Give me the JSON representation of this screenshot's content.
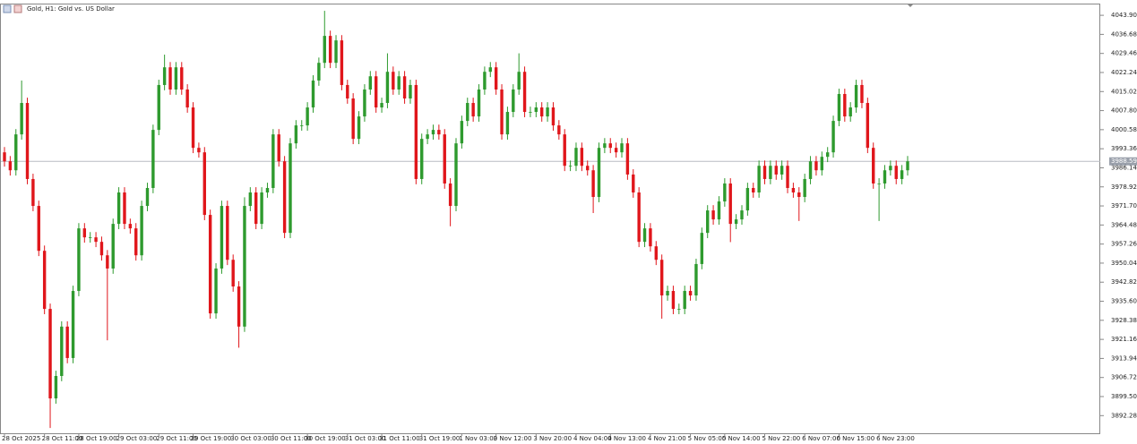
{
  "chart_data": {
    "type": "candlestick",
    "title": "Gold, H1:  Gold vs. US Dollar",
    "up_color": "#2e9a2e",
    "down_color": "#e0161b",
    "ylim": [
      3885.6,
      4048.0
    ],
    "yticks": [
      {
        "value": 4043.9,
        "label": "4043.90"
      },
      4036.68,
      4029.46,
      4022.24,
      4015.02,
      {
        "value": 4007.8,
        "label": "4007.80"
      },
      4000.58,
      3993.36,
      3986.14,
      3978.92,
      {
        "value": 3971.7,
        "label": "3971.70"
      },
      3964.48,
      3957.26,
      3950.04,
      3942.82,
      {
        "value": 3935.6,
        "label": "3935.60"
      },
      3928.38,
      3921.16,
      3913.94,
      3906.72,
      {
        "value": 3899.5,
        "label": "3899.50"
      },
      3892.28
    ],
    "last_price": 3988.59,
    "xticks": [
      {
        "value": 0,
        "label": "28 Oct 2025"
      },
      {
        "value": 7,
        "label": "28 Oct 11:00"
      },
      {
        "value": 13,
        "label": "28 Oct 19:00"
      },
      {
        "value": 20,
        "label": "29 Oct 03:00"
      },
      {
        "value": 27,
        "label": "29 Oct 11:00"
      },
      {
        "value": 33,
        "label": "29 Oct 19:00"
      },
      {
        "value": 40,
        "label": "30 Oct 03:00"
      },
      {
        "value": 47,
        "label": "30 Oct 11:00"
      },
      {
        "value": 53,
        "label": "30 Oct 19:00"
      },
      {
        "value": 60,
        "label": "31 Oct 03:00"
      },
      {
        "value": 66,
        "label": "31 Oct 11:00"
      },
      {
        "value": 73,
        "label": "31 Oct 19:00"
      },
      {
        "value": 80,
        "label": "1 Nov 03:00"
      },
      {
        "value": 86,
        "label": "3 Nov 12:00"
      },
      {
        "value": 93,
        "label": "3 Nov 20:00"
      },
      {
        "value": 100,
        "label": "4 Nov 04:00"
      },
      {
        "value": 106,
        "label": "4 Nov 13:00"
      },
      {
        "value": 113,
        "label": "4 Nov 21:00"
      },
      {
        "value": 120,
        "label": "5 Nov 05:00"
      },
      {
        "value": 126,
        "label": "5 Nov 14:00"
      },
      {
        "value": 133,
        "label": "5 Nov 22:00"
      },
      {
        "value": 140,
        "label": "6 Nov 07:00"
      },
      {
        "value": 146,
        "label": "6 Nov 15:00"
      },
      {
        "value": 153,
        "label": "6 Nov 23:00"
      }
    ],
    "candles": [
      [
        3992.0,
        3994.0,
        3986.6,
        3988.6
      ],
      [
        3988.6,
        3990.6,
        3983.2,
        3985.2
      ],
      [
        3985.2,
        4000.8,
        3983.2,
        3998.8
      ],
      [
        3998.8,
        4019.2,
        3996.8,
        4010.7
      ],
      [
        4010.7,
        4012.7,
        3979.9,
        3981.9
      ],
      [
        3981.9,
        3983.9,
        3969.7,
        3971.7
      ],
      [
        3971.7,
        3973.7,
        3952.7,
        3954.7
      ],
      [
        3954.7,
        3956.7,
        3930.7,
        3932.7
      ],
      [
        3932.7,
        3934.7,
        3887.6,
        3898.8
      ],
      [
        3898.8,
        3909.3,
        3896.8,
        3907.3
      ],
      [
        3907.3,
        3928.0,
        3905.3,
        3926.0
      ],
      [
        3926.0,
        3928.0,
        3912.1,
        3914.1
      ],
      [
        3914.1,
        3941.5,
        3912.1,
        3939.5
      ],
      [
        3939.5,
        3965.2,
        3937.5,
        3963.2
      ],
      [
        3963.2,
        3965.2,
        3957.8,
        3959.8
      ],
      [
        3959.8,
        3961.8,
        3957.8,
        3959.8
      ],
      [
        3959.8,
        3961.8,
        3956.1,
        3958.1
      ],
      [
        3958.1,
        3960.1,
        3951.0,
        3953.0
      ],
      [
        3953.0,
        3955.0,
        3920.8,
        3948.0
      ],
      [
        3948.0,
        3966.9,
        3946.0,
        3964.9
      ],
      [
        3964.9,
        3978.8,
        3962.9,
        3976.8
      ],
      [
        3976.8,
        3978.8,
        3962.9,
        3964.9
      ],
      [
        3964.9,
        3966.9,
        3961.2,
        3963.2
      ],
      [
        3963.2,
        3965.2,
        3951.0,
        3953.0
      ],
      [
        3953.0,
        3973.7,
        3951.0,
        3971.7
      ],
      [
        3971.7,
        3980.5,
        3969.7,
        3978.5
      ],
      [
        3978.5,
        4002.5,
        3976.5,
        4000.5
      ],
      [
        4000.5,
        4019.5,
        3998.5,
        4017.5
      ],
      [
        4017.5,
        4029.0,
        4015.5,
        4024.2
      ],
      [
        4024.2,
        4026.2,
        4013.8,
        4015.8
      ],
      [
        4015.8,
        4026.2,
        4013.8,
        4024.2
      ],
      [
        4024.2,
        4026.2,
        4013.8,
        4015.8
      ],
      [
        4015.8,
        4017.8,
        4007.0,
        4009.0
      ],
      [
        4009.0,
        4011.0,
        3991.7,
        3993.7
      ],
      [
        3993.7,
        3995.7,
        3990.0,
        3992.0
      ],
      [
        3992.0,
        3994.0,
        3966.3,
        3968.3
      ],
      [
        3968.3,
        3970.3,
        3929.0,
        3931.0
      ],
      [
        3931.0,
        3950.0,
        3929.0,
        3948.0
      ],
      [
        3948.0,
        3973.7,
        3946.0,
        3971.7
      ],
      [
        3971.7,
        3973.7,
        3949.3,
        3951.3
      ],
      [
        3951.3,
        3953.3,
        3939.2,
        3941.2
      ],
      [
        3941.2,
        3943.2,
        3918.0,
        3926.0
      ],
      [
        3926.0,
        3975.0,
        3924.0,
        3971.7
      ],
      [
        3971.7,
        3978.8,
        3969.7,
        3976.8
      ],
      [
        3976.8,
        3978.8,
        3962.9,
        3964.9
      ],
      [
        3964.9,
        3978.8,
        3962.9,
        3976.8
      ],
      [
        3976.8,
        3980.5,
        3974.8,
        3978.5
      ],
      [
        3978.5,
        4000.8,
        3976.5,
        3998.8
      ],
      [
        3998.8,
        4000.8,
        3986.6,
        3988.6
      ],
      [
        3988.6,
        3990.6,
        3959.5,
        3961.5
      ],
      [
        3961.5,
        3997.4,
        3959.5,
        3995.4
      ],
      [
        3995.4,
        4004.2,
        3993.4,
        4002.2
      ],
      [
        4002.2,
        4004.2,
        4000.2,
        4002.2
      ],
      [
        4002.2,
        4011.0,
        4000.2,
        4009.0
      ],
      [
        4009.0,
        4021.2,
        4007.0,
        4019.2
      ],
      [
        4019.2,
        4027.9,
        4017.2,
        4025.9
      ],
      [
        4025.9,
        4045.6,
        4023.9,
        4036.1
      ],
      [
        4036.1,
        4038.1,
        4023.9,
        4025.9
      ],
      [
        4025.9,
        4036.4,
        4023.9,
        4034.4
      ],
      [
        4034.4,
        4036.4,
        4015.5,
        4017.5
      ],
      [
        4017.5,
        4019.5,
        4010.4,
        4012.4
      ],
      [
        4012.4,
        4014.4,
        3995.1,
        3997.1
      ],
      [
        3997.1,
        4007.6,
        3995.1,
        4005.6
      ],
      [
        4005.6,
        4017.8,
        4003.6,
        4015.8
      ],
      [
        4015.8,
        4022.8,
        4013.8,
        4020.8
      ],
      [
        4020.8,
        4022.8,
        4007.0,
        4009.0
      ],
      [
        4009.0,
        4012.7,
        4007.0,
        4010.7
      ],
      [
        4010.7,
        4029.5,
        4008.7,
        4022.5
      ],
      [
        4022.5,
        4024.5,
        4013.8,
        4015.8
      ],
      [
        4015.8,
        4022.8,
        4013.8,
        4020.8
      ],
      [
        4020.8,
        4022.8,
        4010.4,
        4012.4
      ],
      [
        4012.4,
        4019.5,
        4010.4,
        4017.5
      ],
      [
        4017.5,
        4019.5,
        3979.9,
        3981.9
      ],
      [
        3981.9,
        3999.1,
        3979.9,
        3997.1
      ],
      [
        3997.1,
        4000.8,
        3995.1,
        3998.8
      ],
      [
        3998.8,
        4002.5,
        3996.8,
        4000.5
      ],
      [
        4000.5,
        4002.5,
        3996.8,
        3998.8
      ],
      [
        3998.8,
        4000.8,
        3978.2,
        3980.2
      ],
      [
        3980.2,
        3982.2,
        3964.0,
        3971.7
      ],
      [
        3971.7,
        3997.4,
        3969.7,
        3995.4
      ],
      [
        3995.4,
        4005.9,
        3993.4,
        4003.9
      ],
      [
        4003.9,
        4012.7,
        4001.9,
        4010.7
      ],
      [
        4010.7,
        4012.7,
        4003.6,
        4005.6
      ],
      [
        4005.6,
        4017.8,
        4003.6,
        4015.8
      ],
      [
        4015.8,
        4024.5,
        4013.8,
        4022.5
      ],
      [
        4022.5,
        4026.2,
        4020.5,
        4024.2
      ],
      [
        4024.2,
        4026.2,
        4013.8,
        4015.8
      ],
      [
        4015.8,
        4017.8,
        3996.8,
        3998.8
      ],
      [
        3998.8,
        4009.3,
        3996.8,
        4007.3
      ],
      [
        4007.3,
        4017.8,
        4005.3,
        4015.8
      ],
      [
        4015.8,
        4029.5,
        4013.8,
        4022.5
      ],
      [
        4022.5,
        4024.5,
        4005.3,
        4007.3
      ],
      [
        4007.3,
        4009.3,
        4005.3,
        4007.3
      ],
      [
        4007.3,
        4011.0,
        4005.3,
        4009.0
      ],
      [
        4009.0,
        4011.0,
        4003.6,
        4005.6
      ],
      [
        4005.6,
        4011.0,
        4003.6,
        4009.0
      ],
      [
        4009.0,
        4011.0,
        4000.2,
        4002.2
      ],
      [
        4002.2,
        4004.2,
        3996.8,
        3998.8
      ],
      [
        3998.8,
        4000.8,
        3984.9,
        3986.9
      ],
      [
        3986.9,
        3988.9,
        3984.9,
        3986.9
      ],
      [
        3986.9,
        3995.7,
        3984.9,
        3993.7
      ],
      [
        3993.7,
        3995.7,
        3984.9,
        3986.9
      ],
      [
        3986.9,
        3988.9,
        3983.2,
        3985.2
      ],
      [
        3985.2,
        3987.2,
        3969.0,
        3975.1
      ],
      [
        3975.1,
        3995.7,
        3973.1,
        3993.7
      ],
      [
        3993.7,
        3997.4,
        3991.7,
        3995.4
      ],
      [
        3995.4,
        3997.4,
        3991.7,
        3993.7
      ],
      [
        3993.7,
        3995.7,
        3990.0,
        3992.0
      ],
      [
        3992.0,
        3997.4,
        3990.0,
        3995.4
      ],
      [
        3995.4,
        3997.4,
        3981.6,
        3983.6
      ],
      [
        3983.6,
        3985.6,
        3974.8,
        3976.8
      ],
      [
        3976.8,
        3978.8,
        3956.1,
        3958.1
      ],
      [
        3958.1,
        3965.2,
        3956.1,
        3963.2
      ],
      [
        3963.2,
        3965.2,
        3954.4,
        3956.4
      ],
      [
        3956.4,
        3958.4,
        3949.3,
        3951.3
      ],
      [
        3951.3,
        3953.3,
        3929.0,
        3937.8
      ],
      [
        3937.8,
        3941.5,
        3935.8,
        3939.5
      ],
      [
        3939.5,
        3941.5,
        3930.7,
        3932.7
      ],
      [
        3932.7,
        3934.7,
        3930.7,
        3932.7
      ],
      [
        3932.7,
        3941.5,
        3930.7,
        3939.5
      ],
      [
        3939.5,
        3941.5,
        3935.8,
        3937.8
      ],
      [
        3937.8,
        3951.7,
        3935.8,
        3949.7
      ],
      [
        3949.7,
        3963.5,
        3947.7,
        3961.5
      ],
      [
        3961.5,
        3972.0,
        3959.5,
        3970.0
      ],
      [
        3970.0,
        3972.0,
        3964.6,
        3966.6
      ],
      [
        3966.6,
        3975.4,
        3964.6,
        3973.4
      ],
      [
        3973.4,
        3982.2,
        3971.4,
        3980.2
      ],
      [
        3980.2,
        3982.2,
        3958.0,
        3964.9
      ],
      [
        3964.9,
        3968.6,
        3962.9,
        3966.6
      ],
      [
        3966.6,
        3972.0,
        3964.6,
        3970.0
      ],
      [
        3970.0,
        3980.5,
        3968.0,
        3978.5
      ],
      [
        3978.5,
        3980.5,
        3974.8,
        3976.8
      ],
      [
        3976.8,
        3988.9,
        3974.8,
        3986.9
      ],
      [
        3986.9,
        3988.9,
        3979.9,
        3981.9
      ],
      [
        3981.9,
        3988.9,
        3979.9,
        3986.9
      ],
      [
        3986.9,
        3988.9,
        3981.6,
        3983.6
      ],
      [
        3983.6,
        3988.9,
        3981.6,
        3986.9
      ],
      [
        3986.9,
        3988.9,
        3976.5,
        3978.5
      ],
      [
        3978.5,
        3980.5,
        3974.8,
        3976.8
      ],
      [
        3976.8,
        3978.8,
        3966.0,
        3975.1
      ],
      [
        3975.1,
        3983.9,
        3973.1,
        3981.9
      ],
      [
        3981.9,
        3990.6,
        3979.9,
        3988.6
      ],
      [
        3988.6,
        3990.6,
        3983.2,
        3985.2
      ],
      [
        3985.2,
        3992.3,
        3983.2,
        3990.3
      ],
      [
        3990.3,
        3994.0,
        3988.3,
        3992.0
      ],
      [
        3992.0,
        4005.9,
        3990.0,
        4003.9
      ],
      [
        4003.9,
        4016.1,
        4001.9,
        4014.1
      ],
      [
        4014.1,
        4016.1,
        4003.6,
        4005.6
      ],
      [
        4005.6,
        4011.0,
        4003.6,
        4009.0
      ],
      [
        4009.0,
        4019.5,
        4007.0,
        4017.5
      ],
      [
        4017.5,
        4019.5,
        4008.7,
        4010.7
      ],
      [
        4010.7,
        4012.7,
        3991.7,
        3993.7
      ],
      [
        3993.7,
        3995.7,
        3978.2,
        3980.2
      ],
      [
        3980.2,
        3982.2,
        3966.0,
        3980.2
      ],
      [
        3980.2,
        3987.2,
        3978.2,
        3985.2
      ],
      [
        3985.2,
        3988.9,
        3983.2,
        3986.9
      ],
      [
        3986.9,
        3988.9,
        3979.9,
        3981.9
      ],
      [
        3981.9,
        3987.2,
        3979.9,
        3985.2
      ],
      [
        3985.2,
        3990.6,
        3983.2,
        3988.6
      ]
    ]
  }
}
